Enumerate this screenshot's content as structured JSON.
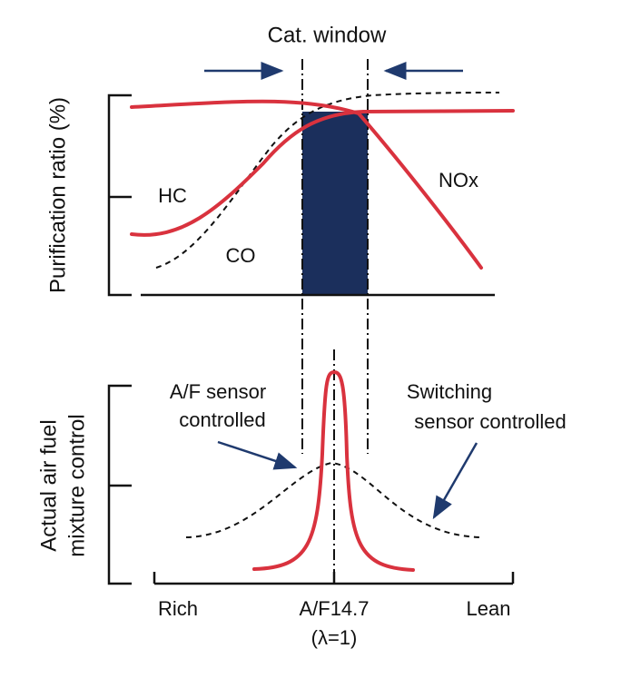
{
  "title": "Cat. window",
  "top_panel": {
    "y_label": "Purification ratio (%)",
    "curves": [
      "HC",
      "CO",
      "NOx"
    ]
  },
  "bottom_panel": {
    "y_label": [
      "Actual air fuel",
      "mixture control"
    ],
    "annotations": [
      [
        "A/F sensor",
        "controlled"
      ],
      [
        "Switching",
        "sensor controlled"
      ]
    ]
  },
  "x_axis": {
    "labels": [
      "Rich",
      "A/F14.7",
      "Lean"
    ],
    "sublabel": "(λ=1)"
  }
}
